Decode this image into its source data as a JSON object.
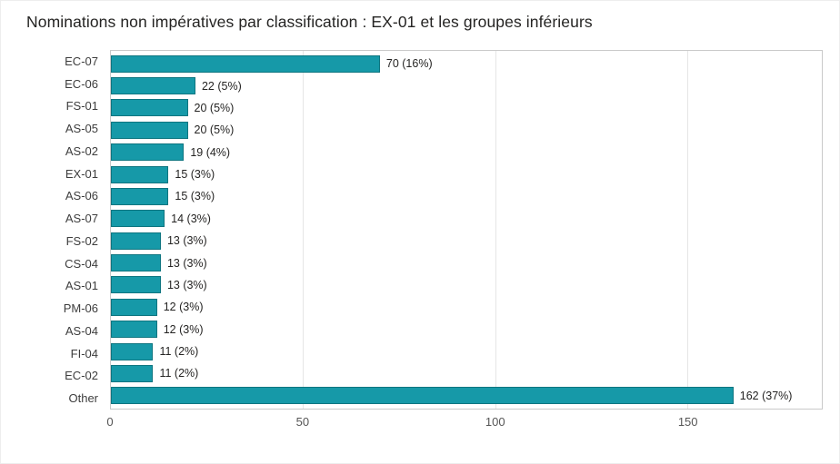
{
  "chart_data": {
    "type": "bar",
    "orientation": "horizontal",
    "title": "Nominations non impératives par classification : EX-01 et les groupes inférieurs",
    "categories": [
      "EC-07",
      "EC-06",
      "FS-01",
      "AS-05",
      "AS-02",
      "EX-01",
      "AS-06",
      "AS-07",
      "FS-02",
      "CS-04",
      "AS-01",
      "PM-06",
      "AS-04",
      "FI-04",
      "EC-02",
      "Other"
    ],
    "values": [
      70,
      22,
      20,
      20,
      19,
      15,
      15,
      14,
      13,
      13,
      13,
      12,
      12,
      11,
      11,
      162
    ],
    "value_labels": [
      "70 (16%)",
      "22 (5%)",
      "20 (5%)",
      "20 (5%)",
      "19 (4%)",
      "15 (3%)",
      "15 (3%)",
      "14 (3%)",
      "13 (3%)",
      "13 (3%)",
      "13 (3%)",
      "12 (3%)",
      "12 (3%)",
      "11 (2%)",
      "11 (2%)",
      "162 (37%)"
    ],
    "xlabel": "",
    "ylabel": "",
    "xlim": [
      0,
      185
    ],
    "xticks": [
      0,
      50,
      100,
      150
    ],
    "grid": "vertical",
    "legend": "none",
    "bar_color": "#1699a8",
    "bar_border_color": "#0e7580",
    "grid_color": "#e6e6e6",
    "plot_border_color": "#c9c9c9"
  }
}
